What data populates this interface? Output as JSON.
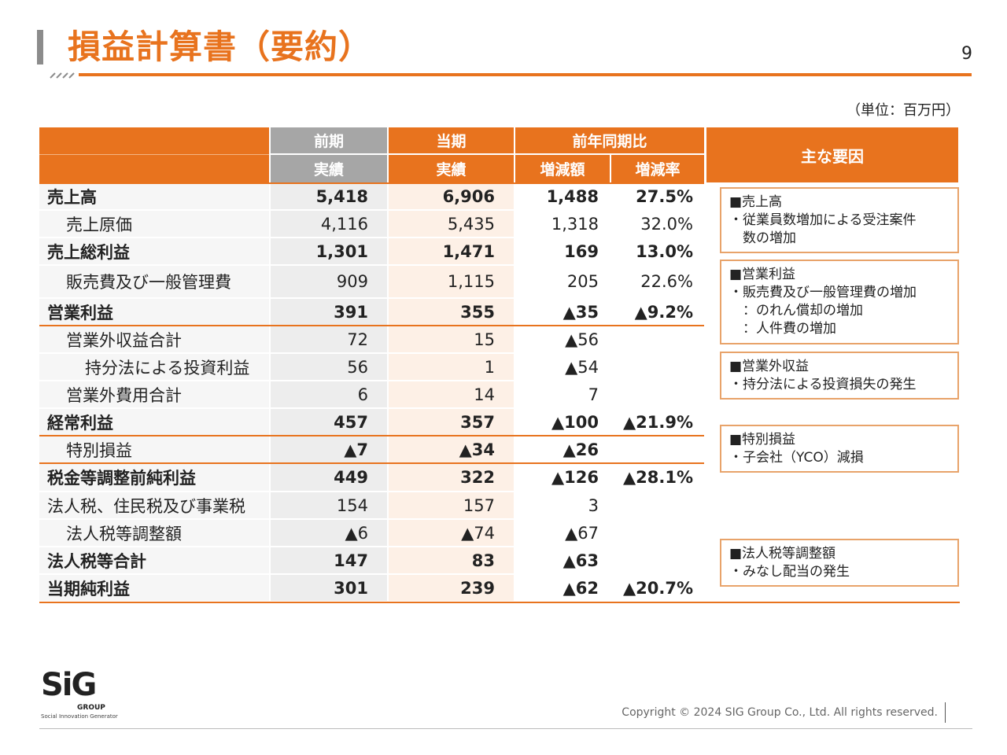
{
  "header": {
    "title": "損益計算書（要約）",
    "page": "9",
    "unit": "（単位：百万円）"
  },
  "table": {
    "columns": {
      "prev": [
        "前期",
        "実績"
      ],
      "curr": [
        "当期",
        "実績"
      ],
      "yoy": "前年同期比",
      "diff": "増減額",
      "rate": "増減率",
      "factors": "主な要因"
    },
    "rows": [
      {
        "label": "売上高",
        "prev": "5,418",
        "curr": "6,906",
        "diff": "1,488",
        "rate": "27.5%",
        "bold": true,
        "indent": 0
      },
      {
        "label": "売上原価",
        "prev": "4,116",
        "curr": "5,435",
        "diff": "1,318",
        "rate": "32.0%",
        "bold": false,
        "indent": 1
      },
      {
        "label": "売上総利益",
        "prev": "1,301",
        "curr": "1,471",
        "diff": "169",
        "rate": "13.0%",
        "bold": true,
        "indent": 0
      },
      {
        "label": "販売費及び一般管理費",
        "prev": "909",
        "curr": "1,115",
        "diff": "205",
        "rate": "22.6%",
        "bold": false,
        "indent": 1
      },
      {
        "label": "営業利益",
        "prev": "391",
        "curr": "355",
        "diff": "▲35",
        "rate": "▲9.2%",
        "bold": true,
        "indent": 0
      },
      {
        "label": "営業外収益合計",
        "prev": "72",
        "curr": "15",
        "diff": "▲56",
        "bold": false,
        "indent": 1
      },
      {
        "label": "持分法による投資利益",
        "prev": "56",
        "curr": "1",
        "diff": "▲54",
        "bold": false,
        "indent": 2
      },
      {
        "label": "営業外費用合計",
        "prev": "6",
        "curr": "14",
        "diff": "7",
        "bold": false,
        "indent": 1
      },
      {
        "label": "経常利益",
        "prev": "457",
        "curr": "357",
        "diff": "▲100",
        "rate": "▲21.9%",
        "bold": true,
        "indent": 0
      },
      {
        "label": "特別損益",
        "prev": "▲7",
        "curr": "▲34",
        "diff": "▲26",
        "bold": false,
        "indent": 1,
        "bold_values": true
      },
      {
        "label": "税金等調整前純利益",
        "prev": "449",
        "curr": "322",
        "diff": "▲126",
        "rate": "▲28.1%",
        "bold": true,
        "indent": 0
      },
      {
        "label": "法人税、住民税及び事業税",
        "prev": "154",
        "curr": "157",
        "diff": "3",
        "bold": false,
        "indent": 0
      },
      {
        "label": "法人税等調整額",
        "prev": "▲6",
        "curr": "▲74",
        "diff": "▲67",
        "bold": false,
        "indent": 1
      },
      {
        "label": "法人税等合計",
        "prev": "147",
        "curr": "83",
        "diff": "▲63",
        "bold": true,
        "indent": 0
      },
      {
        "label": "当期純利益",
        "prev": "301",
        "curr": "239",
        "diff": "▲62",
        "rate": "▲20.7%",
        "bold": true,
        "indent": 0
      }
    ]
  },
  "notes": [
    {
      "title": "■売上高",
      "lines": [
        "・従業員数増加による受注案件",
        "　数の増加"
      ]
    },
    {
      "title": "■営業利益",
      "lines": [
        "・販売費及び一般管理費の増加",
        "　：のれん償却の増加",
        "　：人件費の増加"
      ]
    },
    {
      "title": "■営業外収益",
      "lines": [
        "・持分法による投資損失の発生"
      ]
    },
    {
      "title": "■特別損益",
      "lines": [
        "・子会社（YCO）減損"
      ]
    },
    {
      "title": "■法人税等調整額",
      "lines": [
        "・みなし配当の発生"
      ]
    }
  ],
  "footer": {
    "logo": "SiG",
    "logo_sub": "GROUP",
    "tagline": "Social Innovation Generator",
    "copyright": "Copyright © 2024  SIG Group Co., Ltd. All rights reserved."
  }
}
